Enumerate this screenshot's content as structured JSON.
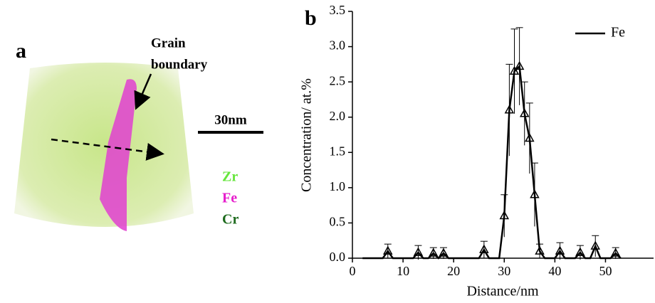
{
  "panel_a": {
    "label": "a",
    "annotation": [
      "Grain",
      "boundary"
    ],
    "scale_bar": "30nm",
    "legend": [
      {
        "name": "Zr",
        "color": "#66e63c"
      },
      {
        "name": "Fe",
        "color": "#e61ecc"
      },
      {
        "name": "Cr",
        "color": "#1e6b1e"
      }
    ]
  },
  "chart_data": {
    "type": "line",
    "panel_label": "b",
    "x_label": "Distance/nm",
    "y_label": "Concentration/ at.%",
    "x": [
      2,
      6,
      7,
      8,
      12,
      13,
      14,
      15,
      16,
      17,
      18,
      19,
      25,
      26,
      27,
      29,
      30,
      31,
      32,
      33,
      34,
      35,
      36,
      37,
      38,
      40,
      41,
      42,
      44,
      45,
      46,
      47,
      48,
      49,
      51,
      52,
      53
    ],
    "series": [
      {
        "name": "Fe",
        "color": "#000000",
        "values": [
          0,
          0,
          0.1,
          0,
          0,
          0.08,
          0,
          0,
          0.07,
          0,
          0.07,
          0,
          0,
          0.12,
          0,
          0,
          0.6,
          2.1,
          2.65,
          2.72,
          2.05,
          1.7,
          0.9,
          0.1,
          0,
          0,
          0.1,
          0,
          0,
          0.08,
          0,
          0,
          0.17,
          0,
          0,
          0.07,
          0
        ],
        "errors": [
          0,
          0,
          0.1,
          0,
          0,
          0.1,
          0,
          0,
          0.08,
          0,
          0.08,
          0,
          0,
          0.12,
          0,
          0,
          0.3,
          0.65,
          0.6,
          0.55,
          0.45,
          0.5,
          0.45,
          0.1,
          0,
          0,
          0.12,
          0,
          0,
          0.1,
          0,
          0,
          0.15,
          0,
          0,
          0.08,
          0
        ]
      }
    ],
    "xlim": [
      0,
      59.5
    ],
    "ylim": [
      0,
      3.5
    ],
    "xticks": [
      0,
      10,
      20,
      30,
      40,
      50
    ],
    "yticks": [
      {
        "value": 0,
        "label": "0.0"
      },
      {
        "value": 0.5,
        "label": "0.5"
      },
      {
        "value": 1,
        "label": "1.0"
      },
      {
        "value": 1.5,
        "label": "1.5"
      },
      {
        "value": 2,
        "label": "2.0"
      },
      {
        "value": 2.5,
        "label": "2.5"
      },
      {
        "value": 3,
        "label": "3.0"
      },
      {
        "value": 3.5,
        "label": "3.5"
      }
    ],
    "legend_position": "upper right"
  }
}
